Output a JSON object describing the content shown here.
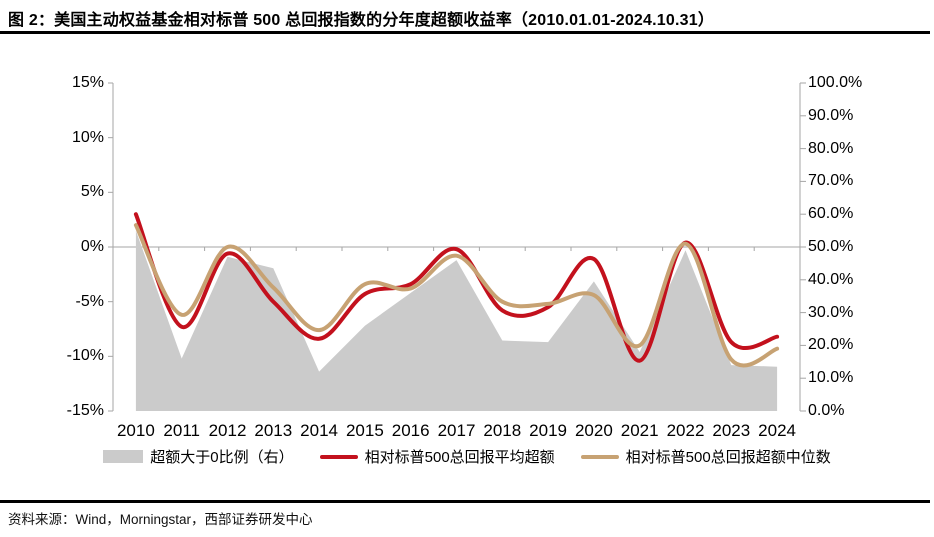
{
  "title": "图 2：美国主动权益基金相对标普 500 总回报指数的分年度超额收益率（2010.01.01-2024.10.31）",
  "source": "资料来源：Wind，Morningstar，西部证券研发中心",
  "colors": {
    "area_gray": "#CBCBCB",
    "avg_line_red": "#C3111D",
    "median_line_tan": "#C7A273",
    "axis_gray": "#A6A6A6",
    "rule_black": "#000000"
  },
  "legend": [
    {
      "label": "超额大于0比例（右）",
      "type": "area",
      "color": "#CBCBCB"
    },
    {
      "label": "相对标普500总回报平均超额",
      "type": "line",
      "color": "#C3111D"
    },
    {
      "label": "相对标普500总回报超额中位数",
      "type": "line",
      "color": "#C7A273"
    }
  ],
  "chart_data": {
    "type": "area",
    "subtype": "gray area (right axis) + two smoothed lines (left axis)",
    "categories": [
      "2010",
      "2011",
      "2012",
      "2013",
      "2014",
      "2015",
      "2016",
      "2017",
      "2018",
      "2019",
      "2020",
      "2021",
      "2022",
      "2023",
      "2024"
    ],
    "series": [
      {
        "name": "超额大于0比例（右）",
        "type": "area",
        "axis": "right",
        "unit": "%",
        "color": "#CBCBCB",
        "values": [
          55,
          16,
          47,
          43.5,
          12,
          26,
          36,
          46,
          21.5,
          21,
          39.5,
          18,
          49,
          14,
          13.5
        ]
      },
      {
        "name": "相对标普500总回报平均超额",
        "type": "line-smooth",
        "axis": "left",
        "unit": "%",
        "color": "#C3111D",
        "values": [
          3.0,
          -7.3,
          -0.6,
          -5.0,
          -8.4,
          -4.3,
          -3.4,
          -0.2,
          -5.8,
          -5.5,
          -1.1,
          -10.4,
          0.4,
          -8.7,
          -8.2
        ]
      },
      {
        "name": "相对标普500总回报超额中位数",
        "type": "line-smooth",
        "axis": "left",
        "unit": "%",
        "color": "#C7A273",
        "values": [
          2.0,
          -6.2,
          0.0,
          -3.7,
          -7.6,
          -3.4,
          -3.8,
          -0.8,
          -5.0,
          -5.2,
          -4.4,
          -9.0,
          0.3,
          -10.3,
          -9.3
        ]
      }
    ],
    "left_axis": {
      "ticks": [
        "15%",
        "10%",
        "5%",
        "0%",
        "-5%",
        "-10%",
        "-15%"
      ],
      "min": -15,
      "max": 15,
      "step": 5
    },
    "right_axis": {
      "ticks": [
        "100.0%",
        "90.0%",
        "80.0%",
        "70.0%",
        "60.0%",
        "50.0%",
        "40.0%",
        "30.0%",
        "20.0%",
        "10.0%",
        "0.0%"
      ],
      "min": 0,
      "max": 100,
      "step": 10
    },
    "grid": "horizontal zero-line only",
    "legend_position": "bottom",
    "xlabel": "",
    "ylabel": ""
  }
}
